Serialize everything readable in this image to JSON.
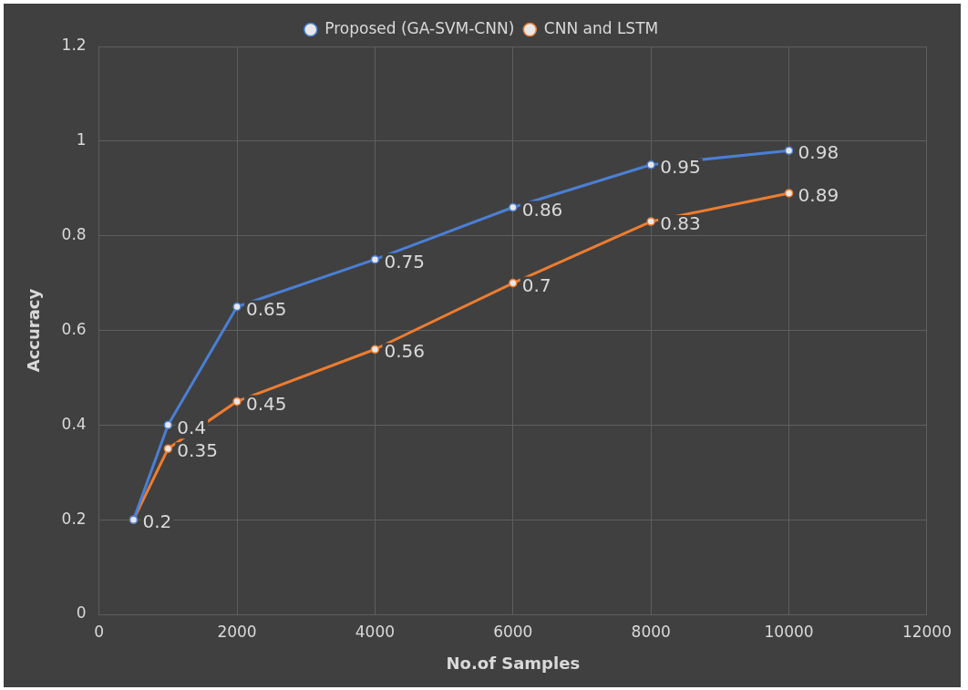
{
  "chart_data": {
    "type": "line",
    "xlabel": "No.of Samples",
    "ylabel": "Accuracy",
    "x": [
      500,
      1000,
      2000,
      4000,
      6000,
      8000,
      10000
    ],
    "series": [
      {
        "name": "Proposed (GA-SVM-CNN)",
        "color": "#4a7fd4",
        "values": [
          0.2,
          0.4,
          0.65,
          0.75,
          0.86,
          0.95,
          0.98
        ],
        "value_labels": [
          null,
          "0.4",
          "0.65",
          "0.75",
          "0.86",
          "0.95",
          "0.98"
        ]
      },
      {
        "name": "CNN and LSTM",
        "color": "#ed7d31",
        "values": [
          0.2,
          0.35,
          0.45,
          0.56,
          0.7,
          0.83,
          0.89
        ],
        "value_labels": [
          "0.2",
          "0.35",
          "0.45",
          "0.56",
          "0.7",
          "0.83",
          "0.89"
        ]
      }
    ],
    "xlim": [
      0,
      12000
    ],
    "xticks": [
      0,
      2000,
      4000,
      6000,
      8000,
      10000,
      12000
    ],
    "ylim": [
      0,
      1.2
    ],
    "yticks": [
      0,
      0.2,
      0.4,
      0.6,
      0.8,
      1,
      1.2
    ],
    "grid": true,
    "legend": "top",
    "marker": "circle",
    "line_style": "solid"
  }
}
